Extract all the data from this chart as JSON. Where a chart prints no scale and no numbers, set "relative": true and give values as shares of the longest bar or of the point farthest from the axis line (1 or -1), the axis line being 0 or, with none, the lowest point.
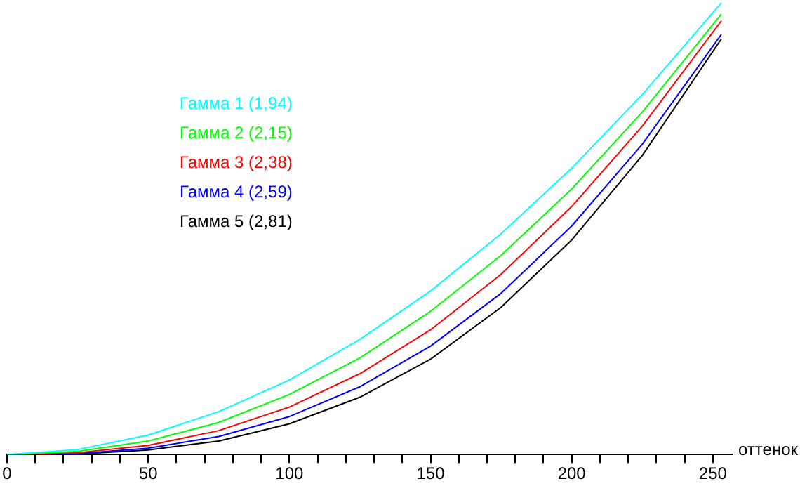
{
  "chart_data": {
    "type": "line",
    "relative": true,
    "xlabel": "оттенок",
    "legend": "top left",
    "grid": false,
    "marker": "none",
    "line_style": "solid",
    "x": [
      0,
      25,
      50,
      75,
      100,
      125,
      150,
      175,
      200,
      225,
      253
    ],
    "xlim": [
      0,
      257
    ],
    "xticks": [
      0,
      {
        "value": 10,
        "label": null
      },
      {
        "value": 20,
        "label": null
      },
      {
        "value": 30,
        "label": null
      },
      {
        "value": 40,
        "label": null
      },
      50,
      {
        "value": 60,
        "label": null
      },
      {
        "value": 70,
        "label": null
      },
      {
        "value": 80,
        "label": null
      },
      {
        "value": 90,
        "label": null
      },
      100,
      {
        "value": 110,
        "label": null
      },
      {
        "value": 120,
        "label": null
      },
      {
        "value": 130,
        "label": null
      },
      {
        "value": 140,
        "label": null
      },
      150,
      {
        "value": 160,
        "label": null
      },
      {
        "value": 170,
        "label": null
      },
      {
        "value": 180,
        "label": null
      },
      {
        "value": 190,
        "label": null
      },
      200,
      {
        "value": 210,
        "label": null
      },
      {
        "value": 220,
        "label": null
      },
      {
        "value": 230,
        "label": null
      },
      {
        "value": 240,
        "label": null
      },
      250
    ],
    "series": [
      {
        "name": "Гамма 1 (1,94)",
        "color": "#00ffff",
        "values": [
          0,
          0.011,
          0.043,
          0.095,
          0.165,
          0.255,
          0.362,
          0.489,
          0.634,
          0.797,
          1
        ]
      },
      {
        "name": "Гамма 2 (2,15)",
        "color": "#00ff00",
        "values": [
          0,
          0.007,
          0.03,
          0.071,
          0.133,
          0.214,
          0.317,
          0.441,
          0.588,
          0.758,
          0.975
        ]
      },
      {
        "name": "Гамма 3 (2,38)",
        "color": "#ff0000",
        "values": [
          0,
          0.004,
          0.02,
          0.053,
          0.105,
          0.179,
          0.276,
          0.399,
          0.549,
          0.727,
          0.96
        ]
      },
      {
        "name": "Гамма 4 (2,59)",
        "color": "#0000ff",
        "values": [
          0,
          0.002,
          0.014,
          0.04,
          0.084,
          0.15,
          0.24,
          0.357,
          0.506,
          0.687,
          0.93
        ]
      },
      {
        "name": "Гамма 5 (2,81)",
        "color": "#000000",
        "values": [
          0,
          0.001,
          0.01,
          0.03,
          0.068,
          0.127,
          0.211,
          0.326,
          0.475,
          0.662,
          0.92
        ]
      }
    ]
  }
}
